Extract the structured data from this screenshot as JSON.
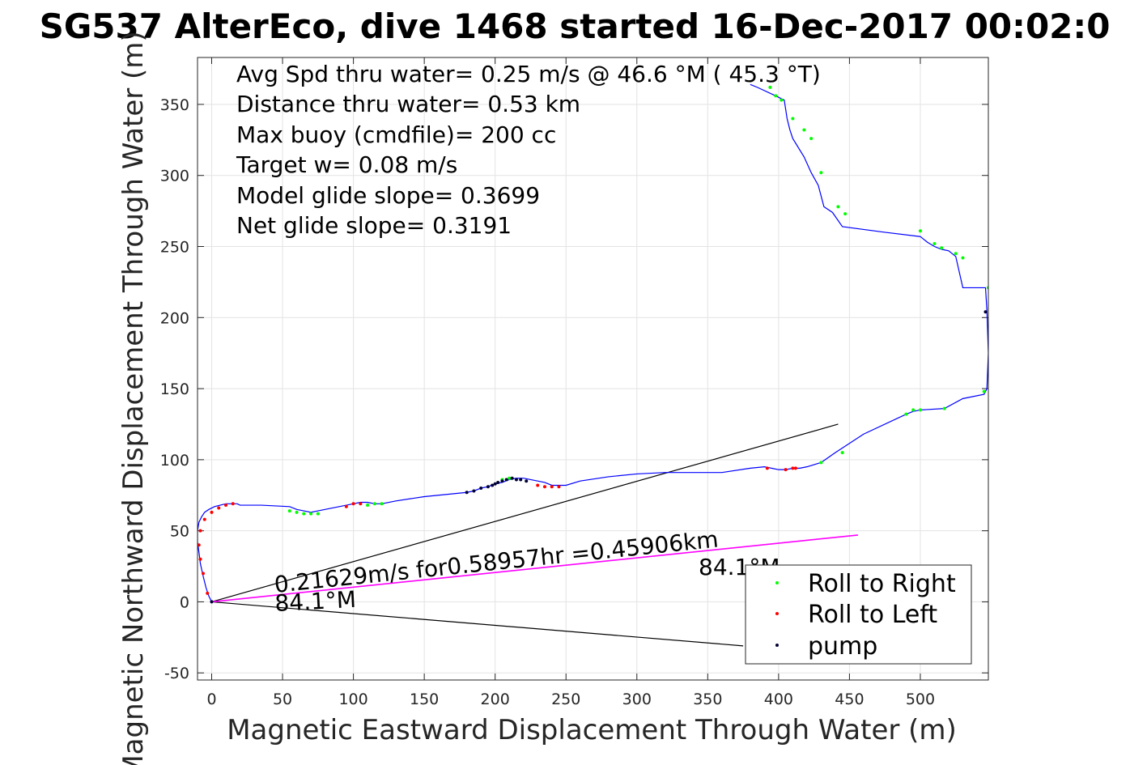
{
  "title": "SG537 AlterEco, dive 1468 started 16-Dec-2017 00:02:0",
  "info_lines": [
    "Avg Spd thru water=  0.25 m/s @  46.6 °M ( 45.3 °T)",
    "Distance thru water=  0.53 km",
    "Max buoy (cmdfile)= 200 cc",
    "Target w= 0.08 m/s",
    "Model glide slope= 0.3699",
    "Net glide slope= 0.3191"
  ],
  "annotations": {
    "speed_text": "0.21629m/s for0.58957hr =0.45906km",
    "heading_left": "84.1°M",
    "heading_right": "84.1°M"
  },
  "legend": {
    "roll_right": "Roll to Right",
    "roll_left": "Roll to Left",
    "pump": "pump"
  },
  "colors": {
    "track": "#0000ff",
    "roll_right": "#00ff00",
    "roll_left": "#ff0000",
    "pump": "#000033",
    "heading_line": "#000000",
    "avg_line": "#ff00ff"
  },
  "chart_data": {
    "type": "line",
    "title": "SG537 AlterEco, dive 1468 started 16-Dec-2017 00:02:0",
    "xlabel": "Magnetic Eastward Displacement Through Water (m)",
    "ylabel": "Magnetic Northward Displacement Through Water (m)",
    "xlim": [
      -10,
      548
    ],
    "ylim": [
      -55,
      383
    ],
    "xticks": [
      "0",
      "50",
      "100",
      "150",
      "200",
      "250",
      "300",
      "350",
      "400",
      "450",
      "500"
    ],
    "yticks": [
      "-50",
      "0",
      "50",
      "100",
      "150",
      "200",
      "250",
      "300",
      "350"
    ],
    "grid": true,
    "legend_position": "bottom-right",
    "track": {
      "x": [
        0,
        -2,
        -4,
        -6,
        -8,
        -9,
        -10,
        -10,
        -9,
        -7,
        -5,
        -2,
        2,
        6,
        10,
        14,
        18,
        20,
        35,
        55,
        60,
        65,
        70,
        75,
        80,
        95,
        100,
        105,
        110,
        115,
        120,
        130,
        150,
        160,
        180,
        185,
        190,
        195,
        200,
        205,
        210,
        215,
        220,
        225,
        230,
        235,
        240,
        250,
        260,
        280,
        300,
        320,
        340,
        360,
        380,
        390,
        395,
        400,
        405,
        410,
        415,
        420,
        430,
        440,
        460,
        490,
        495,
        500,
        517,
        530,
        545,
        546,
        547,
        548,
        547,
        546,
        545,
        530,
        525,
        520,
        515,
        510,
        505,
        500,
        475,
        445,
        438,
        432,
        428,
        423,
        418,
        410,
        408,
        406,
        404,
        398,
        385,
        380
      ],
      "y": [
        0,
        4,
        10,
        18,
        27,
        35,
        42,
        50,
        56,
        60,
        63,
        65,
        67,
        68,
        69,
        69,
        69,
        68,
        68,
        67,
        65,
        64,
        63,
        64,
        65,
        68,
        69,
        70,
        70,
        69,
        69,
        71,
        74,
        75,
        77,
        78,
        80,
        81,
        83,
        84,
        86,
        87,
        87,
        86,
        85,
        84,
        82,
        82,
        85,
        88,
        90,
        91,
        91,
        91,
        94,
        95,
        94,
        93,
        93,
        94,
        94,
        95,
        98,
        105,
        118,
        132,
        134,
        135,
        136,
        143,
        146,
        148,
        150,
        175,
        205,
        221,
        221,
        221,
        243,
        247,
        248,
        250,
        253,
        257,
        260,
        264,
        274,
        278,
        293,
        302,
        313,
        326,
        332,
        340,
        353,
        356,
        362,
        364
      ],
      "roll_right": [
        [
          55,
          64
        ],
        [
          60,
          63
        ],
        [
          65,
          62
        ],
        [
          70,
          62
        ],
        [
          75,
          62
        ],
        [
          110,
          68
        ],
        [
          115,
          69
        ],
        [
          120,
          69
        ],
        [
          205,
          86
        ],
        [
          210,
          87
        ],
        [
          430,
          98
        ],
        [
          445,
          105
        ],
        [
          490,
          132
        ],
        [
          495,
          135
        ],
        [
          500,
          135
        ],
        [
          517,
          136
        ],
        [
          545,
          148
        ],
        [
          548,
          221
        ],
        [
          530,
          242
        ],
        [
          525,
          245
        ],
        [
          515,
          249
        ],
        [
          510,
          252
        ],
        [
          500,
          261
        ],
        [
          447,
          273
        ],
        [
          442,
          278
        ],
        [
          430,
          302
        ],
        [
          423,
          326
        ],
        [
          418,
          332
        ],
        [
          410,
          340
        ],
        [
          402,
          353
        ],
        [
          398,
          356
        ],
        [
          394,
          362
        ]
      ],
      "roll_left": [
        [
          -3,
          6
        ],
        [
          -6,
          20
        ],
        [
          -8,
          30
        ],
        [
          -9,
          40
        ],
        [
          -8,
          50
        ],
        [
          -5,
          58
        ],
        [
          0,
          63
        ],
        [
          5,
          66
        ],
        [
          10,
          68
        ],
        [
          15,
          69
        ],
        [
          95,
          67
        ],
        [
          100,
          69
        ],
        [
          105,
          69
        ],
        [
          230,
          82
        ],
        [
          235,
          81
        ],
        [
          240,
          81
        ],
        [
          245,
          81
        ],
        [
          392,
          94
        ],
        [
          405,
          93
        ],
        [
          410,
          94
        ],
        [
          412,
          94
        ]
      ],
      "pump": [
        [
          0,
          0
        ],
        [
          180,
          77
        ],
        [
          185,
          78
        ],
        [
          190,
          80
        ],
        [
          195,
          81
        ],
        [
          198,
          82
        ],
        [
          200,
          83
        ],
        [
          202,
          84
        ],
        [
          205,
          85
        ],
        [
          208,
          86
        ],
        [
          212,
          87
        ],
        [
          215,
          86
        ],
        [
          218,
          86
        ],
        [
          222,
          85
        ],
        [
          546,
          204
        ]
      ]
    },
    "heading_lines": [
      {
        "x": [
          0,
          442
        ],
        "y": [
          0,
          125
        ]
      },
      {
        "x": [
          0,
          375
        ],
        "y": [
          0,
          -31
        ]
      }
    ],
    "avg_line": {
      "x": [
        0,
        456
      ],
      "y": [
        0,
        47
      ]
    }
  }
}
